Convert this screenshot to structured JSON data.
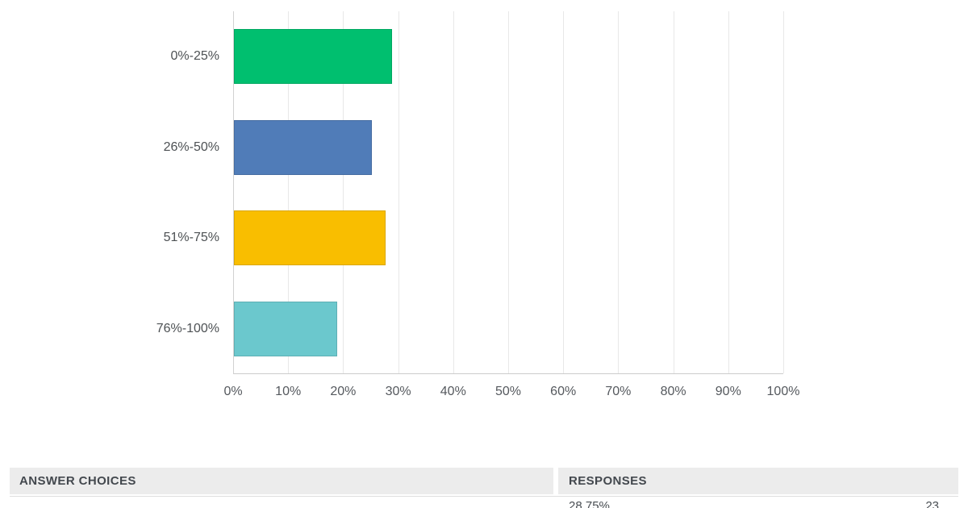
{
  "chart_data": {
    "type": "bar",
    "orientation": "horizontal",
    "title": "",
    "categories": [
      "0%-25%",
      "26%-50%",
      "51%-75%",
      "76%-100%"
    ],
    "values": [
      28.75,
      25.0,
      27.5,
      18.75
    ],
    "bar_colors": [
      "#00BF6F",
      "#507CB8",
      "#F9BE00",
      "#6BC8CD"
    ],
    "x_ticks": [
      "0%",
      "10%",
      "20%",
      "30%",
      "40%",
      "50%",
      "60%",
      "70%",
      "80%",
      "90%",
      "100%"
    ],
    "xlim": [
      0,
      100
    ],
    "xlabel": "",
    "ylabel": "",
    "grid": "vertical",
    "legend": "none"
  },
  "table": {
    "headers": {
      "answer_choices": "ANSWER CHOICES",
      "responses": "RESPONSES"
    },
    "rows": [
      {
        "choice": "",
        "response_percent": "28.75%",
        "response_count": "23"
      }
    ]
  },
  "colors": {
    "header_bg": "#ECECEC",
    "header_text": "#43484E",
    "axis_text": "#55595E",
    "gridline": "#E8E8E8",
    "axis_line": "#D2D2D2"
  }
}
